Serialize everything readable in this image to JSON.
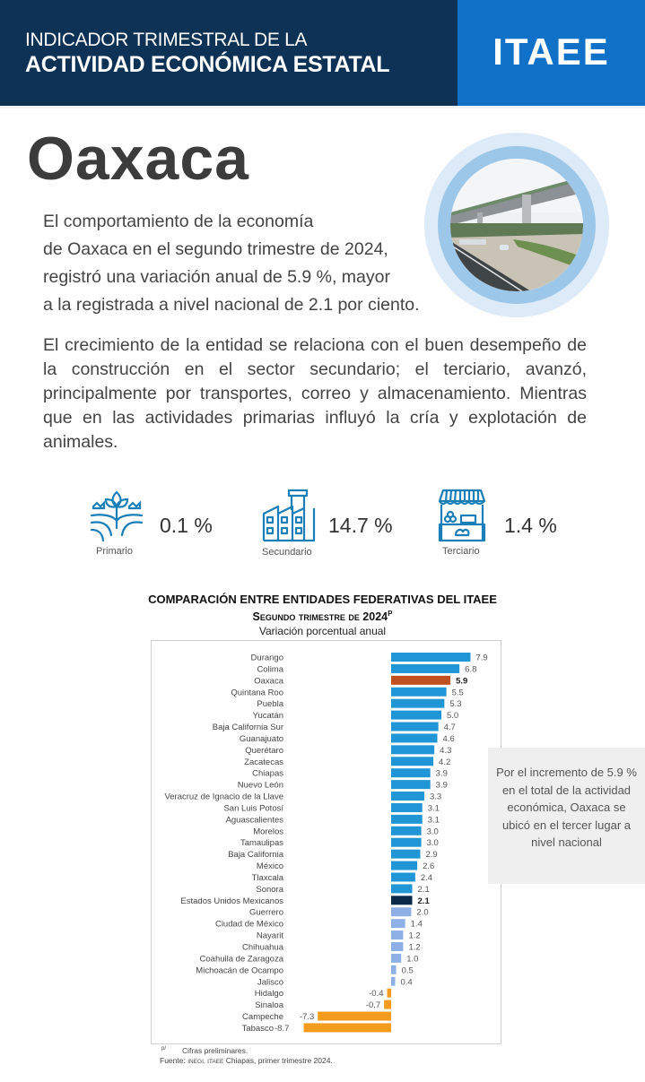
{
  "header": {
    "line1": "INDICADOR TRIMESTRAL DE LA",
    "line2": "ACTIVIDAD ECONÓMICA ESTATAL",
    "logo": "ITAEE",
    "colors": {
      "dark": "#0e3156",
      "accent": "#0f71c7"
    }
  },
  "state": "Oaxaca",
  "intro": [
    "El comportamiento de la economía",
    "de Oaxaca en el segundo trimestre de 2024,",
    "registró una variación anual de 5.9 %, mayor",
    "a la registrada a nivel nacional de 2.1 por ciento."
  ],
  "paragraph2": "El crecimiento de la entidad se relaciona con el buen desempeño de la construcción en el sector secundario; el terciario, avanzó, principalmente por transportes, correo y almacenamiento. Mientras que en las actividades primarias influyó la cría y explotación de animales.",
  "sectors": [
    {
      "label": "Primario",
      "value": "0.1 %",
      "icon": "plant-icon"
    },
    {
      "label": "Secundario",
      "value": "14.7 %",
      "icon": "factory-icon"
    },
    {
      "label": "Terciario",
      "value": "1.4 %",
      "icon": "market-stall-icon"
    }
  ],
  "note": "Por el incremento de 5.9 % en el total de la actividad económica, Oaxaca se ubicó en el tercer lugar a nivel nacional",
  "footnote": {
    "marker": "p/",
    "preliminary": "Cifras preliminares.",
    "source_prefix": "Fuente:",
    "source_inegi": "INEGI,",
    "source_itaee": "ITAEE",
    "source_rest": "Chiapas, primer trimestre 2024."
  },
  "chart_data": {
    "type": "bar",
    "orientation": "horizontal",
    "title": "COMPARACIÓN ENTRE ENTIDADES FEDERATIVAS DEL ITAEE",
    "subtitle": "Segundo trimestre de 2024",
    "subtitle_sup": "P",
    "ylabel": "Variación porcentual anual",
    "xlim": [
      -8.7,
      7.9
    ],
    "grid": false,
    "colors": {
      "positive": "#2196d6",
      "highlight": "#c0501f",
      "national": "#0b2a4a",
      "below_national": "#8fb0e6",
      "negative": "#f29b1d"
    },
    "categories": [
      "Durango",
      "Colima",
      "Oaxaca",
      "Quintana Roo",
      "Puebla",
      "Yucatán",
      "Baja California Sur",
      "Guanajuato",
      "Querétaro",
      "Zacatecas",
      "Chiapas",
      "Nuevo León",
      "Veracruz de Ignacio de la Llave",
      "San Luis Potosí",
      "Aguascalientes",
      "Morelos",
      "Tamaulipas",
      "Baja California",
      "México",
      "Tlaxcala",
      "Sonora",
      "Estados Unidos Mexicanos",
      "Guerrero",
      "Ciudad de México",
      "Nayarit",
      "Chihuahua",
      "Coahuila de Zaragoza",
      "Michoacán de Ocampo",
      "Jalisco",
      "Hidalgo",
      "Sinaloa",
      "Campeche",
      "Tabasco"
    ],
    "values": [
      7.9,
      6.8,
      5.9,
      5.5,
      5.3,
      5.0,
      4.7,
      4.6,
      4.3,
      4.2,
      3.9,
      3.9,
      3.3,
      3.1,
      3.1,
      3.0,
      3.0,
      2.9,
      2.6,
      2.4,
      2.1,
      2.1,
      2.0,
      1.4,
      1.2,
      1.2,
      1.0,
      0.5,
      0.4,
      -0.4,
      -0.7,
      -7.3,
      -8.7
    ],
    "value_labels": [
      "7.9",
      "6.8",
      "5.9",
      "5.5",
      "5.3",
      "5.0",
      "4.7",
      "4.6",
      "4.3",
      "4.2",
      "3.9",
      "3.9",
      "3.3",
      "3.1",
      "3.1",
      "3.0",
      "3.0",
      "2.9",
      "2.6",
      "2.4",
      "2.1",
      "2.1",
      "2.0",
      "1.4",
      "1.2",
      "1.2",
      "1.0",
      "0.5",
      "0.4",
      "-0.4",
      "-0.7",
      "-7.3",
      "-8.7"
    ],
    "bold_labels": [
      "Oaxaca",
      "Estados Unidos Mexicanos"
    ]
  }
}
